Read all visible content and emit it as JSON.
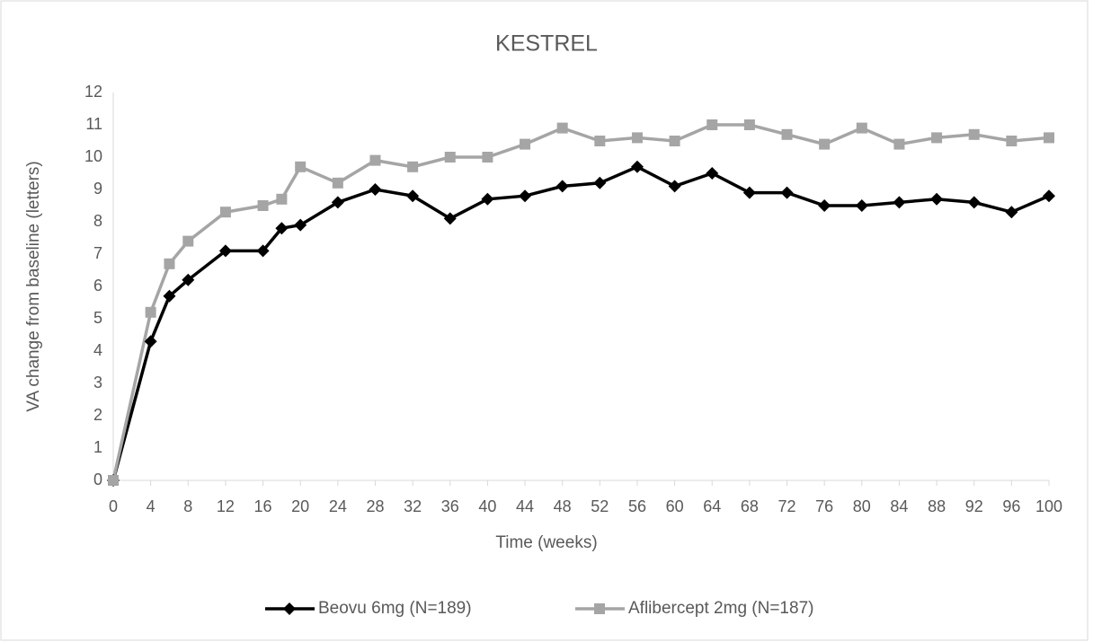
{
  "chart_data": {
    "type": "line",
    "title": "KESTREL",
    "x_label": "Time (weeks)",
    "y_label": "VA change from baseline (letters)",
    "x": [
      0,
      4,
      6,
      8,
      12,
      16,
      18,
      20,
      24,
      28,
      32,
      36,
      40,
      44,
      48,
      52,
      56,
      60,
      64,
      68,
      72,
      76,
      80,
      84,
      88,
      92,
      96,
      100
    ],
    "series": [
      {
        "name": "Beovu 6mg (N=189)",
        "color": "#000000",
        "marker": "diamond",
        "values": [
          0,
          4.3,
          5.7,
          6.2,
          7.1,
          7.1,
          7.8,
          7.9,
          8.6,
          9.0,
          8.8,
          8.1,
          8.7,
          8.8,
          9.1,
          9.2,
          9.7,
          9.1,
          9.5,
          8.9,
          8.9,
          8.5,
          8.5,
          8.6,
          8.7,
          8.6,
          8.3,
          8.8
        ]
      },
      {
        "name": "Aflibercept 2mg (N=187)",
        "color": "#a5a5a5",
        "marker": "square",
        "values": [
          0,
          5.2,
          6.7,
          7.4,
          8.3,
          8.5,
          8.7,
          9.7,
          9.2,
          9.9,
          9.7,
          10.0,
          10.0,
          10.4,
          10.9,
          10.5,
          10.6,
          10.5,
          11.0,
          11.0,
          10.7,
          10.4,
          10.9,
          10.4,
          10.6,
          10.7,
          10.5,
          10.6
        ]
      }
    ],
    "xlim": [
      0,
      100
    ],
    "xticks": [
      0,
      4,
      8,
      12,
      16,
      20,
      24,
      28,
      32,
      36,
      40,
      44,
      48,
      52,
      56,
      60,
      64,
      68,
      72,
      76,
      80,
      84,
      88,
      92,
      96,
      100
    ],
    "ylim": [
      0,
      12
    ],
    "yticks": [
      0,
      1,
      2,
      3,
      4,
      5,
      6,
      7,
      8,
      9,
      10,
      11,
      12
    ],
    "grid": false,
    "legend": "bottom"
  }
}
